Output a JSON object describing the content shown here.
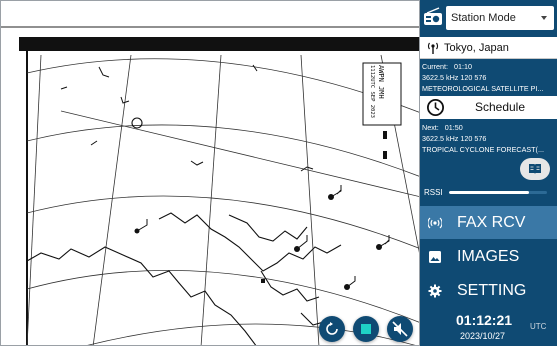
{
  "chart": {
    "header_lines": [
      "AWPN JMH",
      "1112UTC SEP 2023"
    ]
  },
  "controls": {
    "refresh_icon": "refresh-icon",
    "stop_icon": "stop-icon",
    "mute_icon": "volume-off-icon"
  },
  "sidebar": {
    "radio_icon": "radio-icon",
    "mode": "Station Mode",
    "location": "Tokyo, Japan",
    "current": {
      "label": "Current:",
      "time": "01:10",
      "freq": "3622.5 kHz 120  576",
      "desc": "METEOROLOGICAL SATELLITE PI..."
    },
    "schedule_label": "Schedule",
    "next": {
      "label": "Next:",
      "time": "01:50",
      "freq": "3622.5 kHz 120  576",
      "desc": "TROPICAL CYCLONE FORECAST(..."
    },
    "rssi": {
      "label": "RSSI",
      "level": 0.82
    },
    "menu": [
      {
        "label": "FAX RCV",
        "icon": "broadcast-icon",
        "active": true
      },
      {
        "label": "IMAGES",
        "icon": "image-icon",
        "active": false
      },
      {
        "label": "SETTING",
        "icon": "gear-icon",
        "active": false
      }
    ],
    "clock": {
      "time": "01:12:21",
      "date": "2023/10/27",
      "tz": "UTC"
    }
  },
  "colors": {
    "sidebar_bg": "#0f4a73",
    "active_bg": "#3a78a6",
    "fab_bg": "#0f4a73"
  }
}
